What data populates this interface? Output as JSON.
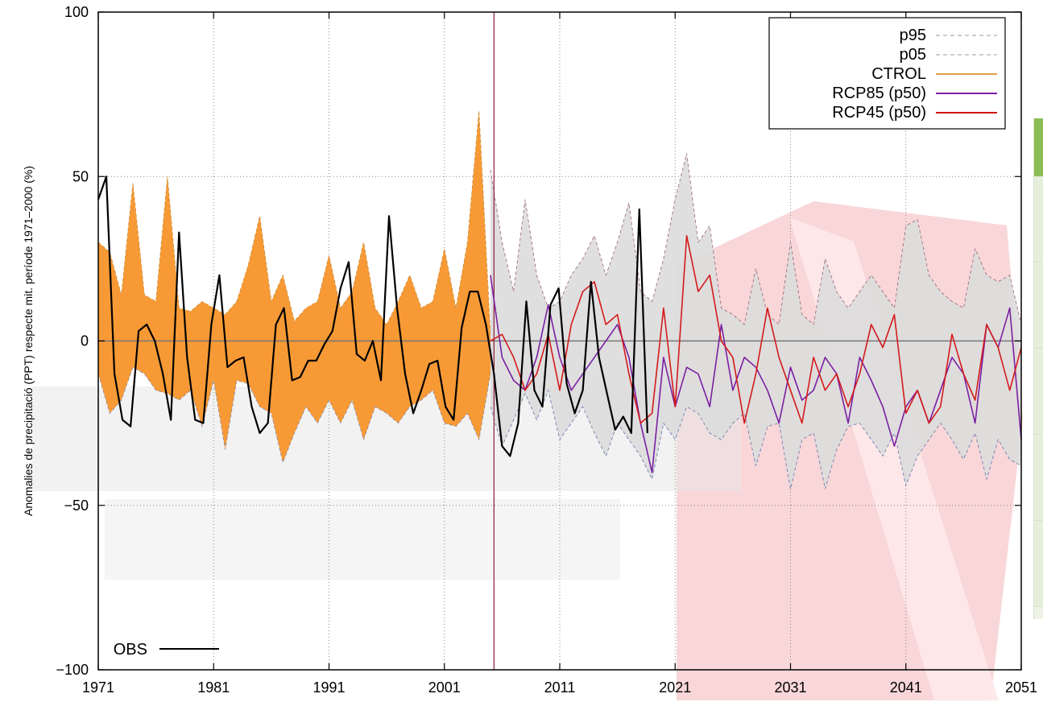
{
  "chart_data": {
    "type": "line",
    "title": "",
    "ylabel": "Anomalies de precipitació (PPT) respecte mit. període 1971–2000 (%)",
    "xlabel": "",
    "xlim": [
      1971,
      2051
    ],
    "ylim": [
      -100,
      100
    ],
    "x_ticks": [
      1971,
      1981,
      1991,
      2001,
      2011,
      2021,
      2031,
      2041,
      2051
    ],
    "y_ticks": [
      -100,
      -50,
      0,
      50,
      100
    ],
    "y_tick_labels": [
      "−100",
      "−50",
      "0",
      "50",
      "100"
    ],
    "grid": true,
    "divider_x": 2005.3,
    "legend_position": "top-right",
    "legend": [
      {
        "key": "p95",
        "label": "p95",
        "color": "#999999",
        "style": "dashed"
      },
      {
        "key": "p05",
        "label": "p05",
        "color": "#999999",
        "style": "dashed"
      },
      {
        "key": "ctrol",
        "label": "CTROL",
        "color": "#e0a040",
        "style": "solid"
      },
      {
        "key": "rcp85",
        "label": "RCP85 (p50)",
        "color": "#7a1fa2",
        "style": "solid"
      },
      {
        "key": "rcp45",
        "label": "RCP45 (p50)",
        "color": "#cc1111",
        "style": "solid"
      }
    ],
    "obs_legend": {
      "label": "OBS",
      "color": "#000000"
    },
    "series": [
      {
        "name": "CTROL",
        "type": "band",
        "color": "#f79a35",
        "x": [
          1971,
          1972,
          1973,
          1974,
          1975,
          1976,
          1977,
          1978,
          1979,
          1980,
          1981,
          1982,
          1983,
          1984,
          1985,
          1986,
          1987,
          1988,
          1989,
          1990,
          1991,
          1992,
          1993,
          1994,
          1995,
          1996,
          1997,
          1998,
          1999,
          2000,
          2001,
          2002,
          2003,
          2004,
          2005
        ],
        "upper": [
          30,
          27,
          14,
          48,
          14,
          12,
          50,
          10,
          9,
          12,
          10,
          8,
          12,
          23,
          38,
          12,
          20,
          6,
          10,
          12,
          26,
          10,
          15,
          30,
          10,
          5,
          12,
          20,
          10,
          12,
          28,
          10,
          30,
          70,
          2
        ],
        "lower": [
          -10,
          -22,
          -18,
          -8,
          -10,
          -15,
          -16,
          -18,
          -15,
          -26,
          -12,
          -33,
          -12,
          -13,
          -20,
          -22,
          -37,
          -28,
          -20,
          -25,
          -18,
          -25,
          -18,
          -30,
          -20,
          -22,
          -25,
          -20,
          -18,
          -15,
          -25,
          -26,
          -22,
          -30,
          -10
        ]
      },
      {
        "name": "p95",
        "type": "band_edge",
        "x": [
          2005,
          2006,
          2007,
          2008,
          2009,
          2010,
          2011,
          2012,
          2013,
          2014,
          2015,
          2016,
          2017,
          2018,
          2019,
          2020,
          2021,
          2022,
          2023,
          2024,
          2025,
          2026,
          2027,
          2028,
          2029,
          2030,
          2031,
          2032,
          2033,
          2034,
          2035,
          2036,
          2037,
          2038,
          2039,
          2040,
          2041,
          2042,
          2043,
          2044,
          2045,
          2046,
          2047,
          2048,
          2049,
          2050,
          2051
        ],
        "upper": [
          52,
          30,
          15,
          43,
          20,
          10,
          12,
          20,
          25,
          32,
          20,
          30,
          42,
          15,
          12,
          25,
          43,
          57,
          30,
          35,
          10,
          8,
          5,
          22,
          8,
          5,
          30,
          8,
          5,
          25,
          15,
          10,
          15,
          20,
          15,
          10,
          35,
          37,
          20,
          15,
          12,
          10,
          28,
          20,
          18,
          20,
          5
        ]
      },
      {
        "name": "p05",
        "type": "band_edge",
        "x": [
          2005,
          2006,
          2007,
          2008,
          2009,
          2010,
          2011,
          2012,
          2013,
          2014,
          2015,
          2016,
          2017,
          2018,
          2019,
          2020,
          2021,
          2022,
          2023,
          2024,
          2025,
          2026,
          2027,
          2028,
          2029,
          2030,
          2031,
          2032,
          2033,
          2034,
          2035,
          2036,
          2037,
          2038,
          2039,
          2040,
          2041,
          2042,
          2043,
          2044,
          2045,
          2046,
          2047,
          2048,
          2049,
          2050,
          2051
        ],
        "lower": [
          -20,
          -32,
          -24,
          -16,
          -24,
          -15,
          -30,
          -25,
          -20,
          -28,
          -35,
          -25,
          -30,
          -35,
          -42,
          -25,
          -30,
          -20,
          -22,
          -28,
          -30,
          -25,
          -22,
          -38,
          -26,
          -25,
          -45,
          -30,
          -28,
          -45,
          -33,
          -26,
          -25,
          -30,
          -35,
          -28,
          -44,
          -35,
          -30,
          -25,
          -30,
          -36,
          -28,
          -42,
          -30,
          -36,
          -38
        ]
      },
      {
        "name": "RCP85 (p50)",
        "type": "line",
        "color": "#7a1fa2",
        "x": [
          2005,
          2006,
          2007,
          2008,
          2009,
          2010,
          2011,
          2012,
          2013,
          2014,
          2015,
          2016,
          2017,
          2018,
          2019,
          2020,
          2021,
          2022,
          2023,
          2024,
          2025,
          2026,
          2027,
          2028,
          2029,
          2030,
          2031,
          2032,
          2033,
          2034,
          2035,
          2036,
          2037,
          2038,
          2039,
          2040,
          2041,
          2042,
          2043,
          2044,
          2045,
          2046,
          2047,
          2048,
          2049,
          2050,
          2051
        ],
        "y": [
          20,
          -5,
          -12,
          -15,
          -5,
          11,
          -5,
          -15,
          -10,
          -5,
          0,
          5,
          -5,
          -25,
          -40,
          -5,
          -20,
          -8,
          -10,
          -20,
          5,
          -15,
          -5,
          -8,
          -15,
          -25,
          -8,
          -18,
          -15,
          -5,
          -10,
          -25,
          -5,
          -12,
          -20,
          -32,
          -20,
          -15,
          -25,
          -15,
          -5,
          -10,
          -25,
          5,
          -2,
          10,
          -30
        ]
      },
      {
        "name": "RCP45 (p50)",
        "type": "line",
        "color": "#d41a1a",
        "x": [
          2005,
          2006,
          2007,
          2008,
          2009,
          2010,
          2011,
          2012,
          2013,
          2014,
          2015,
          2016,
          2017,
          2018,
          2019,
          2020,
          2021,
          2022,
          2023,
          2024,
          2025,
          2026,
          2027,
          2028,
          2029,
          2030,
          2031,
          2032,
          2033,
          2034,
          2035,
          2036,
          2037,
          2038,
          2039,
          2040,
          2041,
          2042,
          2043,
          2044,
          2045,
          2046,
          2047,
          2048,
          2049,
          2050,
          2051
        ],
        "y": [
          0,
          2,
          -5,
          -15,
          -10,
          2,
          -15,
          5,
          15,
          18,
          5,
          8,
          -10,
          -25,
          -22,
          10,
          -20,
          32,
          15,
          20,
          0,
          -5,
          -25,
          -10,
          10,
          -5,
          -15,
          -25,
          -5,
          -15,
          -10,
          -20,
          -10,
          5,
          -2,
          8,
          -22,
          -15,
          -25,
          -20,
          2,
          -10,
          -18,
          5,
          -2,
          -15,
          -2
        ]
      },
      {
        "name": "OBS",
        "type": "line",
        "color": "#000000",
        "x": [
          1971,
          1971.7,
          1972.4,
          1973.1,
          1973.8,
          1974.5,
          1975.2,
          1975.9,
          1976.6,
          1977.3,
          1978,
          1978.7,
          1979.4,
          1980.1,
          1980.8,
          1981.5,
          1982.2,
          1982.9,
          1983.6,
          1984.3,
          1985,
          1985.7,
          1986.4,
          1987.1,
          1987.8,
          1988.5,
          1989.2,
          1989.9,
          1990.6,
          1991.3,
          1992,
          1992.7,
          1993.4,
          1994.1,
          1994.8,
          1995.5,
          1996.2,
          1996.9,
          1997.6,
          1998.3,
          1999,
          1999.7,
          2000.4,
          2001.1,
          2001.8,
          2002.5,
          2003.2,
          2003.9,
          2004.6,
          2005.3,
          2006,
          2006.7,
          2007.4,
          2008.1,
          2008.8,
          2009.5,
          2010.2,
          2010.9,
          2011.6,
          2012.3,
          2013,
          2013.7,
          2014.4,
          2015.1,
          2015.8,
          2016.5,
          2017.2,
          2017.9,
          2018.6
        ],
        "y": [
          43,
          50,
          -10,
          -24,
          -26,
          3,
          5,
          0,
          -10,
          -24,
          33,
          -5,
          -24,
          -25,
          5,
          20,
          -8,
          -6,
          -5,
          -20,
          -28,
          -25,
          5,
          10,
          -12,
          -11,
          -6,
          -6,
          -1,
          3,
          16,
          24,
          -4,
          -6,
          0,
          -12,
          38,
          10,
          -10,
          -22,
          -15,
          -7,
          -6,
          -20,
          -24,
          4,
          15,
          15,
          5,
          -10,
          -32,
          -35,
          -25,
          12,
          -15,
          -20,
          11,
          16,
          -13,
          -22,
          -15,
          18,
          -5,
          -16,
          -27,
          -23,
          -28,
          40,
          -28
        ]
      }
    ]
  }
}
